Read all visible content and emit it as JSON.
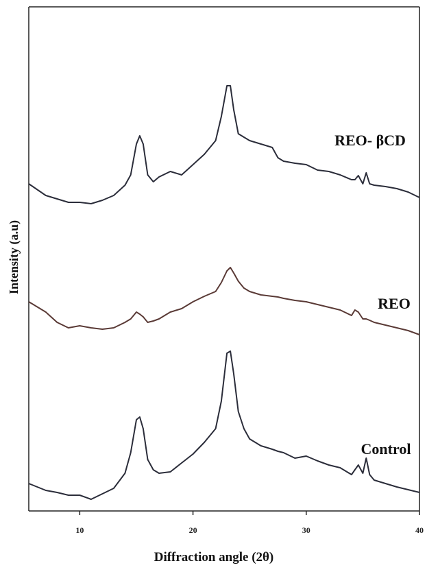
{
  "chart_data": {
    "type": "line",
    "x_label": "Diffraction angle (2θ)",
    "y_label": "Intensity (a.u)",
    "x": [
      5.5,
      7,
      8,
      9,
      10,
      11,
      12,
      13,
      14,
      14.5,
      15,
      15.3,
      15.6,
      16,
      16.5,
      17,
      18,
      19,
      20,
      21,
      22,
      22.5,
      23,
      23.3,
      23.6,
      24,
      24.5,
      25,
      26,
      27,
      27.5,
      28,
      29,
      30,
      31,
      32,
      33,
      34,
      34.3,
      34.6,
      35,
      35.3,
      35.6,
      36,
      37,
      38,
      39,
      40
    ],
    "series": [
      {
        "name": "REO- βCD",
        "color": "#2b2d3a",
        "values": [
          477,
          460,
          455,
          450,
          450,
          448,
          453,
          460,
          475,
          490,
          535,
          547,
          535,
          490,
          480,
          487,
          495,
          490,
          505,
          520,
          540,
          575,
          620,
          620,
          585,
          550,
          545,
          540,
          535,
          530,
          515,
          510,
          507,
          505,
          497,
          495,
          490,
          483,
          483,
          489,
          477,
          493,
          477,
          475,
          473,
          470,
          465,
          457
        ]
      },
      {
        "name": "REO",
        "color": "#5a3a36",
        "values": [
          305,
          290,
          275,
          267,
          270,
          267,
          265,
          267,
          275,
          280,
          290,
          287,
          283,
          275,
          277,
          280,
          290,
          295,
          305,
          313,
          320,
          333,
          350,
          355,
          347,
          335,
          325,
          320,
          315,
          313,
          312,
          310,
          307,
          305,
          301,
          297,
          293,
          285,
          293,
          290,
          280,
          280,
          278,
          275,
          271,
          267,
          263,
          257
        ]
      },
      {
        "name": "Control",
        "color": "#2b2d3a",
        "values": [
          40,
          30,
          27,
          23,
          23,
          17,
          25,
          33,
          55,
          85,
          133,
          137,
          120,
          75,
          60,
          55,
          57,
          70,
          83,
          100,
          120,
          160,
          230,
          233,
          200,
          145,
          120,
          105,
          95,
          90,
          87,
          85,
          77,
          80,
          73,
          67,
          63,
          53,
          60,
          67,
          55,
          77,
          53,
          45,
          40,
          35,
          31,
          27
        ]
      }
    ],
    "xlim": [
      5.5,
      40
    ],
    "xticks": [
      10,
      20,
      30,
      40
    ],
    "ylim": [
      0,
      735
    ]
  }
}
